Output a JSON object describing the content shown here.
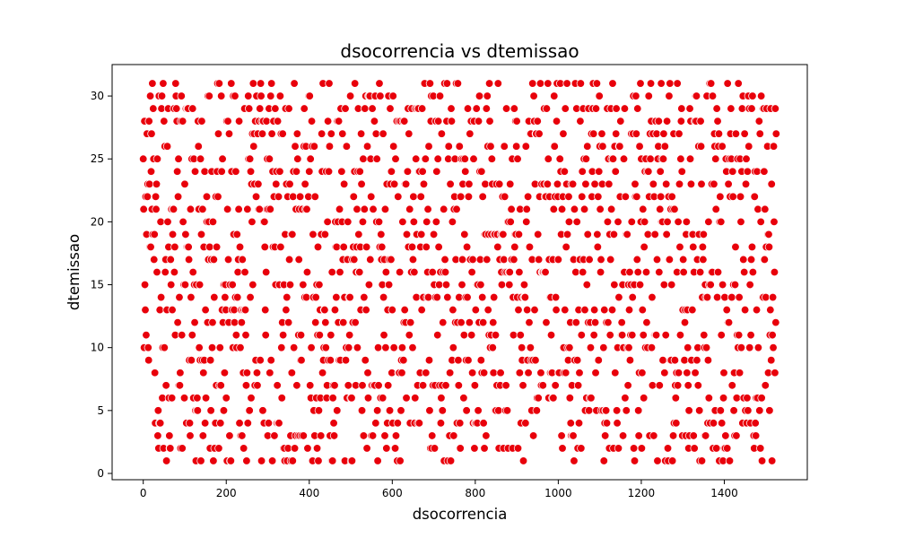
{
  "chart_data": {
    "type": "scatter",
    "title": "dsocorrencia vs dtemissao",
    "xlabel": "dsocorrencia",
    "ylabel": "dtemissao",
    "xlim": [
      -75,
      1600
    ],
    "ylim": [
      -0.5,
      32.5
    ],
    "xticks": [
      0,
      200,
      400,
      600,
      800,
      1000,
      1200,
      1400
    ],
    "yticks": [
      0,
      5,
      10,
      15,
      20,
      25,
      30
    ],
    "grid": false,
    "legend": "none",
    "marker_color": "#e8000b",
    "marker_edge_color": "#ffffff",
    "point_generation": {
      "note": "dense uniform scatter: one point per integer x, y integer in 1..31",
      "x_start": 0,
      "x_end": 1525,
      "x_step": 1,
      "y_min": 1,
      "y_max": 31,
      "seed": 20240517
    }
  }
}
